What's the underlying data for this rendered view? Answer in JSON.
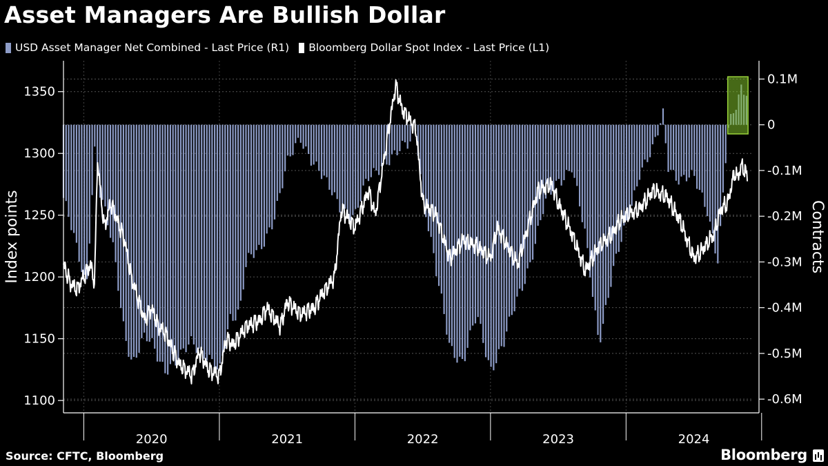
{
  "chart_data": {
    "type": "bar+line",
    "title": "Asset Managers Are Bullish Dollar",
    "source": "Source: CFTC, Bloomberg",
    "brand": "Bloomberg",
    "left_axis": {
      "label": "Index points",
      "ticks": [
        "1100",
        "1150",
        "1200",
        "1250",
        "1300",
        "1350"
      ],
      "ylim": [
        1090,
        1375
      ]
    },
    "right_axis": {
      "label": "Contracts",
      "ticks": [
        "0.1M",
        "0",
        "-0.1M",
        "-0.2M",
        "-0.3M",
        "-0.4M",
        "-0.5M",
        "-0.6M"
      ],
      "ylim": [
        -0.63,
        0.14
      ]
    },
    "x_ticks": [
      "2020",
      "2021",
      "2022",
      "2023",
      "2024"
    ],
    "x_range": [
      2019.85,
      2024.94
    ],
    "grid": true,
    "legend_position": "top-left",
    "highlight": {
      "x_range": [
        2024.75,
        2024.9
      ],
      "y_range": [
        -0.02,
        0.105
      ],
      "color": "#7fbf2a"
    },
    "series": [
      {
        "name": "USD Asset Manager Net Combined - Last Price (R1)",
        "axis": "right",
        "kind": "bar",
        "color": "#8d9cc7",
        "x": [
          2019.85,
          2019.95,
          2020.02,
          2020.08,
          2020.12,
          2020.16,
          2020.22,
          2020.3,
          2020.36,
          2020.45,
          2020.5,
          2020.6,
          2020.7,
          2020.8,
          2020.9,
          2021.0,
          2021.08,
          2021.15,
          2021.2,
          2021.3,
          2021.4,
          2021.5,
          2021.6,
          2021.7,
          2021.8,
          2021.9,
          2022.0,
          2022.1,
          2022.2,
          2022.3,
          2022.4,
          2022.45,
          2022.5,
          2022.6,
          2022.7,
          2022.8,
          2022.9,
          2023.0,
          2023.1,
          2023.2,
          2023.3,
          2023.4,
          2023.5,
          2023.6,
          2023.7,
          2023.8,
          2023.9,
          2024.0,
          2024.1,
          2024.2,
          2024.28,
          2024.3,
          2024.4,
          2024.5,
          2024.6,
          2024.68,
          2024.75,
          2024.8,
          2024.85,
          2024.9
        ],
        "values": [
          -0.16,
          -0.28,
          -0.35,
          -0.05,
          -0.15,
          -0.2,
          -0.28,
          -0.45,
          -0.52,
          -0.47,
          -0.48,
          -0.53,
          -0.52,
          -0.47,
          -0.5,
          -0.55,
          -0.42,
          -0.4,
          -0.3,
          -0.28,
          -0.2,
          -0.09,
          -0.03,
          -0.08,
          -0.14,
          -0.18,
          -0.2,
          -0.12,
          -0.08,
          -0.07,
          -0.04,
          0.0,
          -0.15,
          -0.33,
          -0.48,
          -0.52,
          -0.42,
          -0.53,
          -0.48,
          -0.38,
          -0.29,
          -0.18,
          -0.12,
          -0.09,
          -0.25,
          -0.47,
          -0.33,
          -0.22,
          -0.1,
          -0.06,
          0.03,
          -0.08,
          -0.12,
          -0.12,
          -0.18,
          -0.3,
          -0.02,
          0.03,
          0.085,
          0.08
        ]
      },
      {
        "name": "Bloomberg Dollar Spot Index - Last Price (L1)",
        "axis": "left",
        "kind": "line",
        "color": "#ffffff",
        "x": [
          2019.85,
          2019.9,
          2019.95,
          2020.0,
          2020.05,
          2020.08,
          2020.1,
          2020.15,
          2020.2,
          2020.3,
          2020.35,
          2020.45,
          2020.5,
          2020.55,
          2020.6,
          2020.7,
          2020.8,
          2020.85,
          2020.92,
          2021.0,
          2021.05,
          2021.1,
          2021.2,
          2021.3,
          2021.35,
          2021.45,
          2021.5,
          2021.6,
          2021.7,
          2021.75,
          2021.85,
          2021.9,
          2022.0,
          2022.05,
          2022.1,
          2022.15,
          2022.2,
          2022.3,
          2022.35,
          2022.45,
          2022.5,
          2022.6,
          2022.7,
          2022.8,
          2022.9,
          2023.0,
          2023.05,
          2023.1,
          2023.2,
          2023.3,
          2023.35,
          2023.45,
          2023.5,
          2023.6,
          2023.65,
          2023.7,
          2023.8,
          2023.9,
          2023.95,
          2024.0,
          2024.1,
          2024.2,
          2024.3,
          2024.4,
          2024.45,
          2024.5,
          2024.55,
          2024.65,
          2024.7,
          2024.75,
          2024.8,
          2024.82,
          2024.85,
          2024.88,
          2024.9
        ],
        "values": [
          1210,
          1195,
          1190,
          1200,
          1210,
          1195,
          1295,
          1240,
          1260,
          1230,
          1200,
          1165,
          1175,
          1160,
          1155,
          1130,
          1120,
          1140,
          1125,
          1120,
          1150,
          1145,
          1160,
          1165,
          1175,
          1160,
          1180,
          1170,
          1175,
          1185,
          1200,
          1255,
          1240,
          1255,
          1270,
          1250,
          1285,
          1355,
          1335,
          1320,
          1260,
          1250,
          1215,
          1230,
          1225,
          1215,
          1240,
          1230,
          1210,
          1250,
          1270,
          1275,
          1260,
          1235,
          1220,
          1205,
          1225,
          1235,
          1245,
          1250,
          1255,
          1270,
          1265,
          1245,
          1230,
          1215,
          1220,
          1235,
          1255,
          1260,
          1285,
          1280,
          1290,
          1285,
          1280
        ]
      }
    ]
  }
}
